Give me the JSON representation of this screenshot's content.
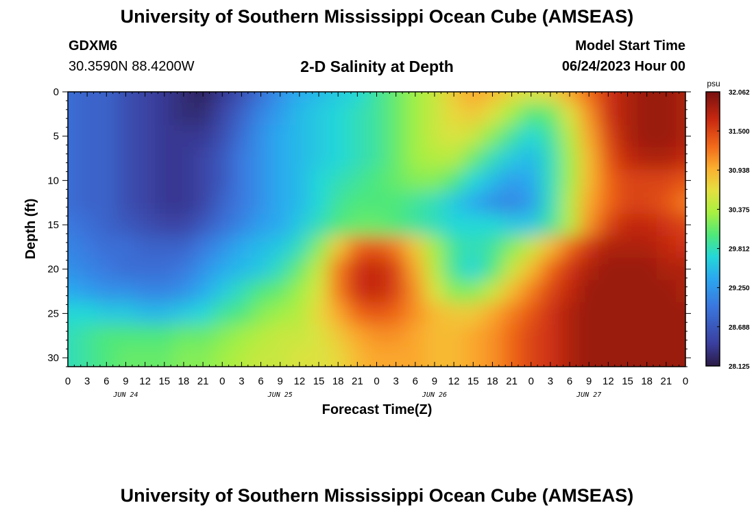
{
  "page": {
    "title": "University of Southern Mississippi Ocean Cube (AMSEAS)",
    "station": "GDXM6",
    "coords": "30.3590N  88.4200W",
    "subtitle": "2-D Salinity at Depth",
    "model_start_label": "Model Start Time",
    "model_start_value": "06/24/2023 Hour 00",
    "footer_title": "University of Southern Mississippi Ocean Cube (AMSEAS)"
  },
  "chart_data": {
    "type": "heatmap",
    "title": "2-D Salinity at Depth",
    "xlabel": "Forecast Time(Z)",
    "ylabel": "Depth (ft)",
    "x_tick_labels": [
      "0",
      "3",
      "6",
      "9",
      "12",
      "15",
      "18",
      "21",
      "0",
      "3",
      "6",
      "9",
      "12",
      "15",
      "18",
      "21",
      "0",
      "3",
      "6",
      "9",
      "12",
      "15",
      "18",
      "21",
      "0",
      "3",
      "6",
      "9",
      "12",
      "15",
      "18",
      "21",
      "0"
    ],
    "x_day_labels": [
      {
        "label": "JUN 24",
        "hour": 9
      },
      {
        "label": "JUN 25",
        "hour": 33
      },
      {
        "label": "JUN 26",
        "hour": 57
      },
      {
        "label": "JUN 27",
        "hour": 81
      }
    ],
    "xlim_hours": [
      0,
      96
    ],
    "y_ticks": [
      0,
      5,
      10,
      15,
      20,
      25,
      30
    ],
    "ylim": [
      0,
      31
    ],
    "y_inverted": true,
    "colorbar": {
      "unit": "psu",
      "tick_labels": [
        "32.062",
        "31.500",
        "30.938",
        "30.375",
        "29.812",
        "29.250",
        "28.688",
        "28.125"
      ],
      "range": [
        28.125,
        32.062
      ]
    },
    "grid_hours": [
      0,
      3,
      6,
      9,
      12,
      15,
      18,
      21,
      24,
      27,
      30,
      33,
      36,
      39,
      42,
      45,
      48,
      51,
      54,
      57,
      60,
      63,
      66,
      69,
      72,
      75,
      78,
      81,
      84,
      87,
      90,
      93,
      96
    ],
    "grid_depths": [
      0,
      2.5,
      5,
      7.5,
      10,
      12.5,
      15,
      17.5,
      20,
      22.5,
      25,
      27.5,
      30,
      31
    ],
    "values": [
      [
        28.9,
        28.8,
        28.8,
        28.6,
        28.5,
        28.4,
        28.3,
        28.2,
        28.4,
        28.6,
        28.9,
        29.2,
        29.4,
        29.5,
        29.6,
        29.7,
        29.9,
        30.1,
        30.3,
        30.5,
        30.8,
        31.0,
        30.9,
        30.7,
        30.6,
        30.7,
        31.0,
        31.3,
        31.6,
        31.8,
        31.9,
        31.9,
        31.8
      ],
      [
        28.9,
        28.8,
        28.8,
        28.6,
        28.5,
        28.4,
        28.3,
        28.3,
        28.5,
        28.8,
        29.1,
        29.3,
        29.5,
        29.6,
        29.7,
        29.8,
        29.9,
        30.1,
        30.3,
        30.5,
        30.7,
        30.8,
        30.6,
        30.3,
        30.0,
        30.1,
        30.6,
        31.1,
        31.6,
        31.8,
        31.9,
        31.9,
        31.8
      ],
      [
        28.9,
        28.8,
        28.8,
        28.6,
        28.5,
        28.4,
        28.4,
        28.4,
        28.6,
        28.9,
        29.2,
        29.4,
        29.5,
        29.6,
        29.7,
        29.8,
        29.9,
        30.1,
        30.3,
        30.5,
        30.6,
        30.5,
        30.2,
        29.9,
        29.7,
        29.9,
        30.4,
        31.0,
        31.5,
        31.8,
        31.9,
        31.9,
        31.8
      ],
      [
        28.9,
        28.8,
        28.8,
        28.6,
        28.5,
        28.4,
        28.4,
        28.5,
        28.7,
        29.0,
        29.2,
        29.4,
        29.5,
        29.6,
        29.7,
        29.8,
        29.9,
        30.1,
        30.3,
        30.4,
        30.4,
        30.1,
        29.8,
        29.6,
        29.5,
        29.8,
        30.3,
        30.9,
        31.4,
        31.7,
        31.8,
        31.8,
        31.7
      ],
      [
        28.9,
        28.8,
        28.8,
        28.6,
        28.5,
        28.4,
        28.4,
        28.5,
        28.7,
        29.0,
        29.2,
        29.4,
        29.5,
        29.7,
        29.8,
        29.9,
        30.0,
        30.1,
        30.2,
        30.2,
        30.0,
        29.7,
        29.5,
        29.3,
        29.4,
        29.8,
        30.3,
        30.9,
        31.3,
        31.5,
        31.5,
        31.5,
        31.4
      ],
      [
        28.9,
        28.8,
        28.8,
        28.6,
        28.5,
        28.4,
        28.4,
        28.5,
        28.8,
        29.0,
        29.2,
        29.4,
        29.5,
        29.7,
        29.9,
        30.0,
        30.0,
        30.0,
        29.9,
        29.8,
        29.6,
        29.4,
        29.2,
        29.1,
        29.3,
        29.8,
        30.4,
        31.0,
        31.3,
        31.5,
        31.5,
        31.4,
        31.2
      ],
      [
        29.0,
        28.9,
        28.8,
        28.7,
        28.6,
        28.5,
        28.5,
        28.7,
        28.9,
        29.1,
        29.3,
        29.4,
        29.6,
        29.8,
        30.0,
        30.1,
        30.1,
        30.0,
        29.9,
        29.8,
        29.7,
        29.7,
        29.7,
        29.6,
        29.6,
        29.9,
        30.4,
        31.1,
        31.5,
        31.7,
        31.7,
        31.6,
        31.5
      ],
      [
        29.1,
        29.0,
        28.9,
        28.9,
        28.8,
        28.8,
        28.8,
        29.0,
        29.2,
        29.4,
        29.5,
        29.6,
        29.8,
        30.2,
        30.8,
        31.3,
        31.4,
        31.2,
        30.8,
        30.3,
        29.9,
        29.8,
        29.9,
        30.2,
        30.5,
        30.9,
        31.3,
        31.6,
        31.8,
        31.8,
        31.8,
        31.7,
        31.6
      ],
      [
        29.2,
        29.1,
        29.0,
        28.9,
        28.9,
        28.9,
        29.0,
        29.2,
        29.4,
        29.5,
        29.6,
        29.8,
        30.1,
        30.5,
        31.2,
        31.6,
        31.7,
        31.5,
        31.0,
        30.4,
        29.9,
        29.7,
        30.0,
        30.5,
        30.9,
        31.3,
        31.6,
        31.8,
        31.9,
        31.9,
        31.9,
        31.8,
        31.8
      ],
      [
        29.4,
        29.3,
        29.2,
        29.2,
        29.1,
        29.1,
        29.2,
        29.4,
        29.6,
        29.8,
        30.0,
        30.1,
        30.3,
        30.6,
        31.2,
        31.6,
        31.7,
        31.5,
        31.1,
        30.6,
        30.2,
        30.2,
        30.5,
        30.9,
        31.2,
        31.5,
        31.7,
        31.9,
        31.9,
        31.9,
        31.9,
        31.9,
        31.8
      ],
      [
        29.7,
        29.7,
        29.6,
        29.6,
        29.5,
        29.5,
        29.6,
        29.7,
        29.9,
        30.0,
        30.2,
        30.3,
        30.4,
        30.7,
        31.0,
        31.3,
        31.4,
        31.3,
        31.1,
        30.9,
        30.8,
        30.8,
        31.0,
        31.2,
        31.4,
        31.6,
        31.8,
        31.9,
        31.9,
        31.9,
        31.9,
        31.9,
        31.9
      ],
      [
        29.8,
        29.9,
        30.0,
        30.0,
        30.0,
        30.0,
        30.1,
        30.1,
        30.2,
        30.3,
        30.4,
        30.5,
        30.5,
        30.6,
        30.8,
        31.0,
        31.1,
        31.1,
        31.0,
        30.9,
        30.9,
        31.0,
        31.1,
        31.3,
        31.5,
        31.6,
        31.8,
        31.9,
        31.9,
        31.9,
        31.9,
        31.9,
        31.9
      ],
      [
        29.8,
        29.9,
        30.0,
        30.1,
        30.1,
        30.1,
        30.2,
        30.2,
        30.3,
        30.4,
        30.5,
        30.5,
        30.6,
        30.6,
        30.7,
        30.9,
        31.0,
        31.0,
        31.0,
        30.9,
        30.9,
        31.0,
        31.1,
        31.3,
        31.5,
        31.6,
        31.8,
        31.9,
        31.9,
        31.9,
        31.9,
        31.9,
        31.9
      ],
      [
        29.8,
        29.9,
        30.0,
        30.1,
        30.1,
        30.1,
        30.2,
        30.2,
        30.3,
        30.4,
        30.5,
        30.5,
        30.6,
        30.6,
        30.7,
        30.9,
        31.0,
        31.0,
        31.0,
        30.9,
        30.9,
        31.0,
        31.1,
        31.3,
        31.5,
        31.6,
        31.8,
        31.9,
        31.9,
        31.9,
        31.9,
        31.9,
        31.9
      ]
    ]
  }
}
